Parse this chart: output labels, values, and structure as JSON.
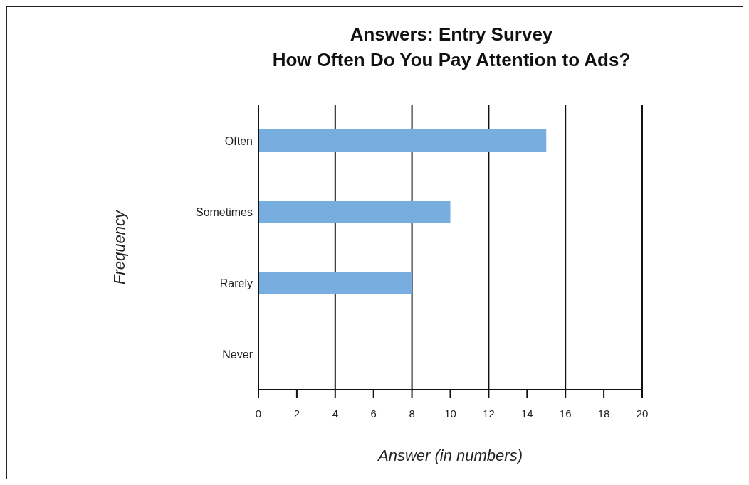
{
  "chart_data": {
    "type": "bar",
    "orientation": "horizontal",
    "title": "Answers: Entry Survey",
    "subtitle": "How Often Do You Pay Attention to Ads?",
    "xlabel": "Answer (in numbers)",
    "ylabel": "Frequency",
    "categories": [
      "Often",
      "Sometimes",
      "Rarely",
      "Never"
    ],
    "values": [
      15,
      10,
      8,
      0
    ],
    "color": "#77addf",
    "xlim": [
      0,
      20
    ],
    "xticks": [
      0,
      2,
      4,
      6,
      8,
      10,
      12,
      14,
      16,
      18,
      20
    ],
    "grid": "x"
  }
}
